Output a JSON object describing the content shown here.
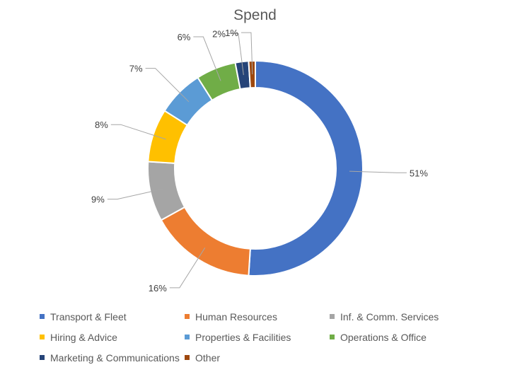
{
  "chart_data": {
    "type": "pie",
    "title": "Spend",
    "series": [
      {
        "name": "",
        "labels": [
          "Transport & Fleet",
          "Human Resources",
          "Inf. & Comm. Services",
          "Hiring & Advice",
          "Properties & Facilities",
          "Operations & Office",
          "Marketing & Communications",
          "Other"
        ],
        "values": [
          51,
          16,
          9,
          8,
          7,
          6,
          2,
          1
        ],
        "data_labels": [
          "51%",
          "16%",
          "9%",
          "8%",
          "7%",
          "6%",
          "2%",
          "1%"
        ],
        "colors": [
          "#4472C4",
          "#ED7D31",
          "#A5A5A5",
          "#FFC000",
          "#5B9BD5",
          "#70AD47",
          "#264478",
          "#9E480E"
        ]
      }
    ],
    "donut": true,
    "legend_position": "bottom"
  }
}
